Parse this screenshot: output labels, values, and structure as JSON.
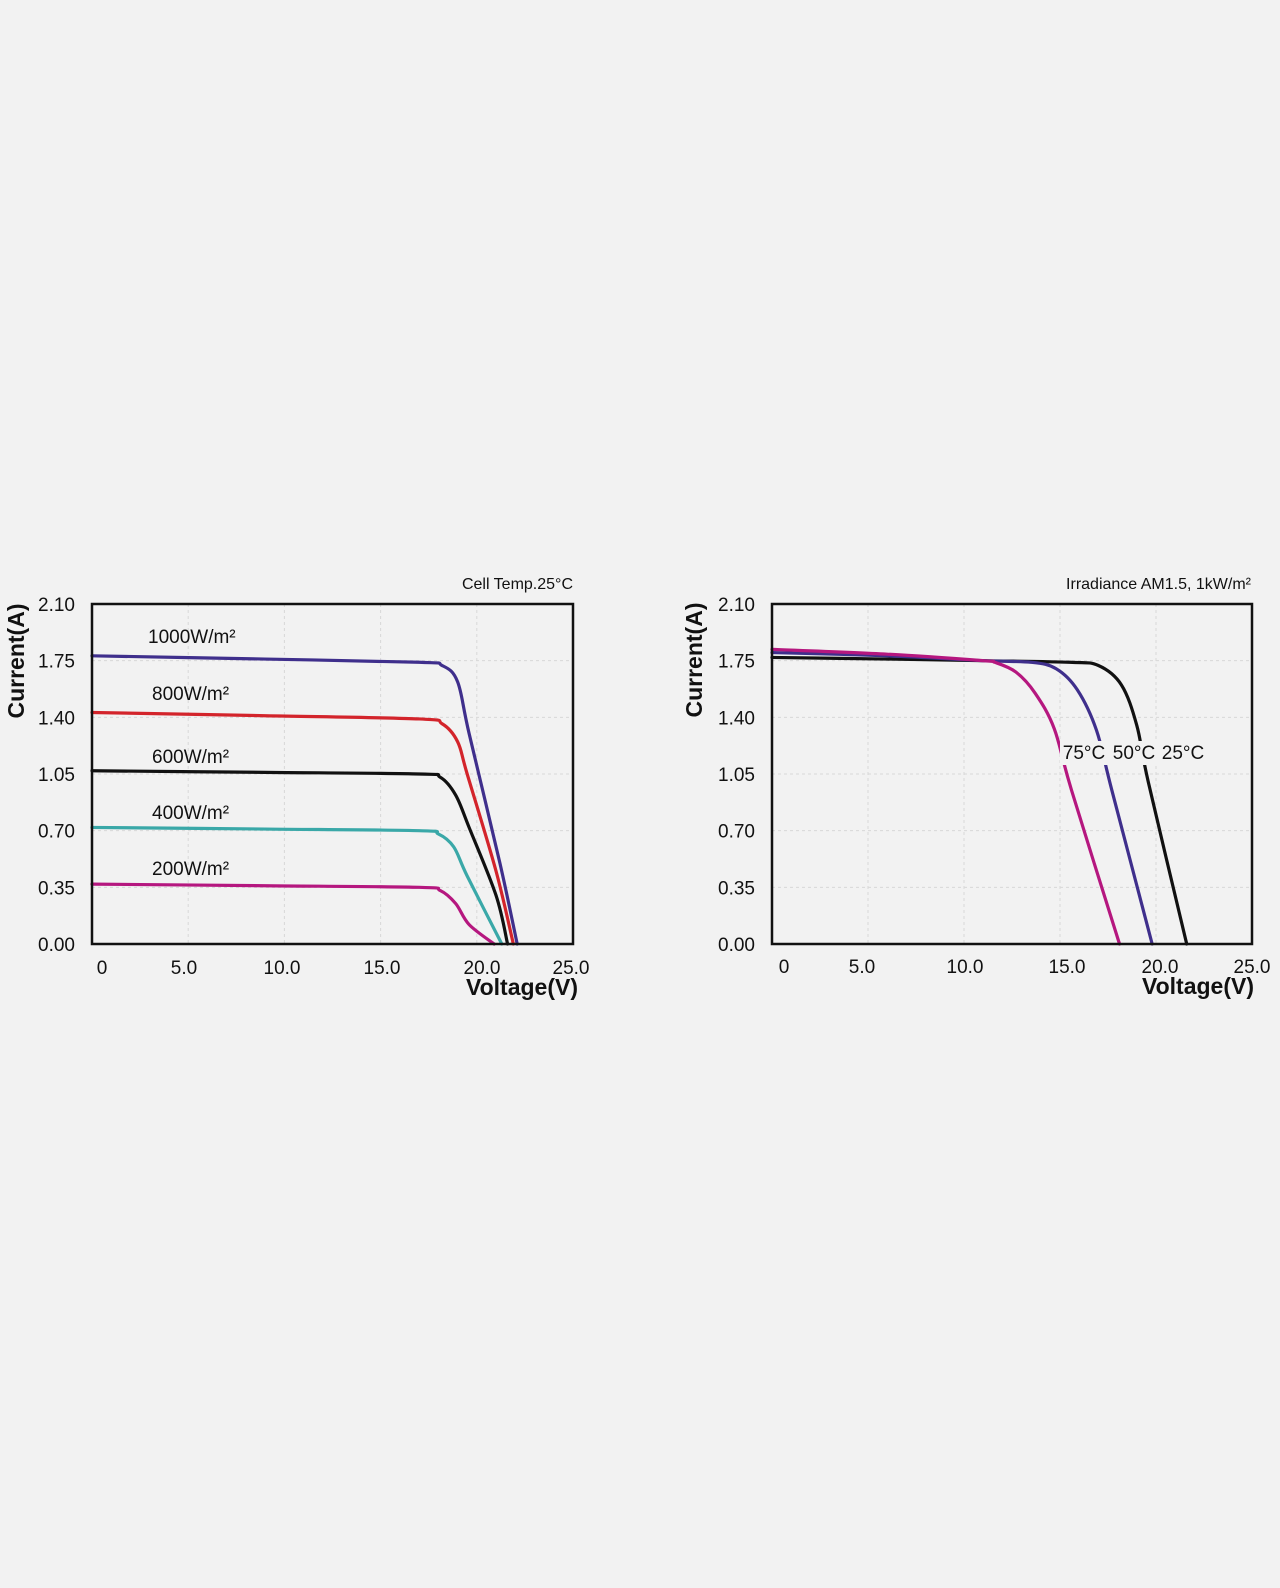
{
  "chart_data": [
    {
      "type": "line",
      "annotation": "Cell Temp.25°C",
      "xlabel": "Voltage(V)",
      "ylabel": "Current(A)",
      "xlim": [
        0,
        25
      ],
      "ylim": [
        0,
        2.1
      ],
      "x_ticks": [
        "0",
        "5.0",
        "10.0",
        "15.0",
        "20.0",
        "25.0"
      ],
      "y_ticks": [
        "2.10",
        "1.75",
        "1.40",
        "1.05",
        "0.70",
        "0.35",
        "0.00"
      ],
      "grid": true,
      "series": [
        {
          "name": "1000W/m²",
          "color": "#3f2f8c",
          "points": [
            [
              0,
              1.78
            ],
            [
              9,
              1.76
            ],
            [
              17,
              1.74
            ],
            [
              18.2,
              1.72
            ],
            [
              19,
              1.62
            ],
            [
              19.6,
              1.3
            ],
            [
              21.2,
              0.5
            ],
            [
              22.1,
              0
            ]
          ]
        },
        {
          "name": "800W/m²",
          "color": "#d3242b",
          "points": [
            [
              0,
              1.43
            ],
            [
              9,
              1.41
            ],
            [
              17,
              1.39
            ],
            [
              18.2,
              1.36
            ],
            [
              19,
              1.25
            ],
            [
              19.5,
              1.05
            ],
            [
              21,
              0.45
            ],
            [
              21.9,
              0
            ]
          ]
        },
        {
          "name": "600W/m²",
          "color": "#111111",
          "points": [
            [
              0,
              1.07
            ],
            [
              9,
              1.06
            ],
            [
              17,
              1.05
            ],
            [
              18.1,
              1.03
            ],
            [
              18.9,
              0.92
            ],
            [
              19.6,
              0.72
            ],
            [
              21,
              0.3
            ],
            [
              21.6,
              0
            ]
          ]
        },
        {
          "name": "400W/m²",
          "color": "#3aa8a8",
          "points": [
            [
              0,
              0.72
            ],
            [
              9,
              0.71
            ],
            [
              17,
              0.7
            ],
            [
              18,
              0.68
            ],
            [
              18.8,
              0.6
            ],
            [
              19.5,
              0.42
            ],
            [
              21.3,
              0
            ]
          ]
        },
        {
          "name": "200W/m²",
          "color": "#b5177f",
          "points": [
            [
              0,
              0.37
            ],
            [
              9,
              0.36
            ],
            [
              17,
              0.35
            ],
            [
              18.1,
              0.33
            ],
            [
              18.9,
              0.25
            ],
            [
              19.6,
              0.12
            ],
            [
              20.9,
              0
            ]
          ]
        }
      ]
    },
    {
      "type": "line",
      "annotation": "Irradiance AM1.5, 1kW/m²",
      "xlabel": "Voltage(V)",
      "ylabel": "Current(A)",
      "xlim": [
        0,
        25
      ],
      "ylim": [
        0,
        2.1
      ],
      "x_ticks": [
        "0",
        "5.0",
        "10.0",
        "15.0",
        "20.0",
        "25.0"
      ],
      "y_ticks": [
        "2.10",
        "1.75",
        "1.40",
        "1.05",
        "0.70",
        "0.35",
        "0.00"
      ],
      "grid": true,
      "series": [
        {
          "name": "25°C",
          "color": "#111111",
          "points": [
            [
              0,
              1.77
            ],
            [
              6,
              1.76
            ],
            [
              11,
              1.75
            ],
            [
              15.5,
              1.74
            ],
            [
              17,
              1.72
            ],
            [
              18.2,
              1.6
            ],
            [
              19,
              1.35
            ],
            [
              19.6,
              1.0
            ],
            [
              21.6,
              0
            ]
          ]
        },
        {
          "name": "50°C",
          "color": "#3f2f8c",
          "points": [
            [
              0,
              1.8
            ],
            [
              6,
              1.78
            ],
            [
              11,
              1.75
            ],
            [
              13.5,
              1.74
            ],
            [
              14.8,
              1.7
            ],
            [
              15.9,
              1.57
            ],
            [
              16.9,
              1.32
            ],
            [
              17.7,
              0.95
            ],
            [
              19.8,
              0
            ]
          ]
        },
        {
          "name": "75°C",
          "color": "#b5177f",
          "points": [
            [
              0,
              1.82
            ],
            [
              6,
              1.79
            ],
            [
              11,
              1.75
            ],
            [
              11.6,
              1.74
            ],
            [
              12.7,
              1.68
            ],
            [
              13.7,
              1.55
            ],
            [
              14.7,
              1.33
            ],
            [
              15.6,
              0.95
            ],
            [
              18.1,
              0
            ]
          ]
        }
      ]
    }
  ]
}
